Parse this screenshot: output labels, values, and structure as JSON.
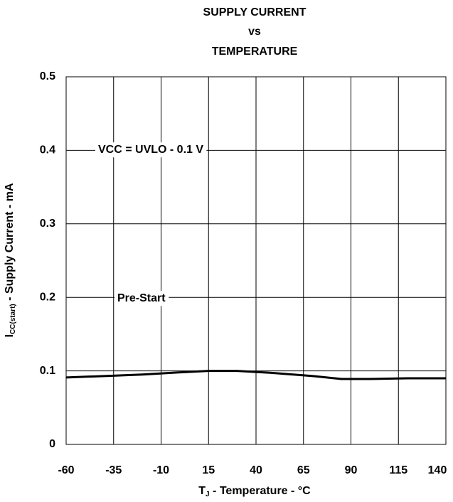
{
  "chart_data": {
    "type": "line",
    "title": [
      "SUPPLY CURRENT",
      "vs",
      "TEMPERATURE"
    ],
    "xlabel": {
      "main": "T",
      "sub": "J",
      "rest": " - Temperature - °C"
    },
    "ylabel": {
      "main": "I",
      "sub": "CC(start)",
      "rest": " - Supply Current - mA"
    },
    "annotations": [
      "VCC = UVLO - 0.1 V",
      "Pre-Start"
    ],
    "x": [
      -60,
      -40,
      -20,
      0,
      15,
      30,
      50,
      70,
      85,
      100,
      120,
      140
    ],
    "series": [
      {
        "name": "Pre-Start",
        "color": "#000000",
        "values": [
          0.091,
          0.093,
          0.095,
          0.098,
          0.1,
          0.1,
          0.097,
          0.093,
          0.089,
          0.089,
          0.09,
          0.09
        ]
      }
    ],
    "xlim": [
      -60,
      140
    ],
    "xticks": [
      -60,
      -35,
      -10,
      15,
      40,
      65,
      90,
      115,
      140
    ],
    "ylim": [
      0,
      0.5
    ],
    "yticks": [
      0,
      0.1,
      0.2,
      0.3,
      0.4,
      0.5
    ],
    "grid": true
  }
}
